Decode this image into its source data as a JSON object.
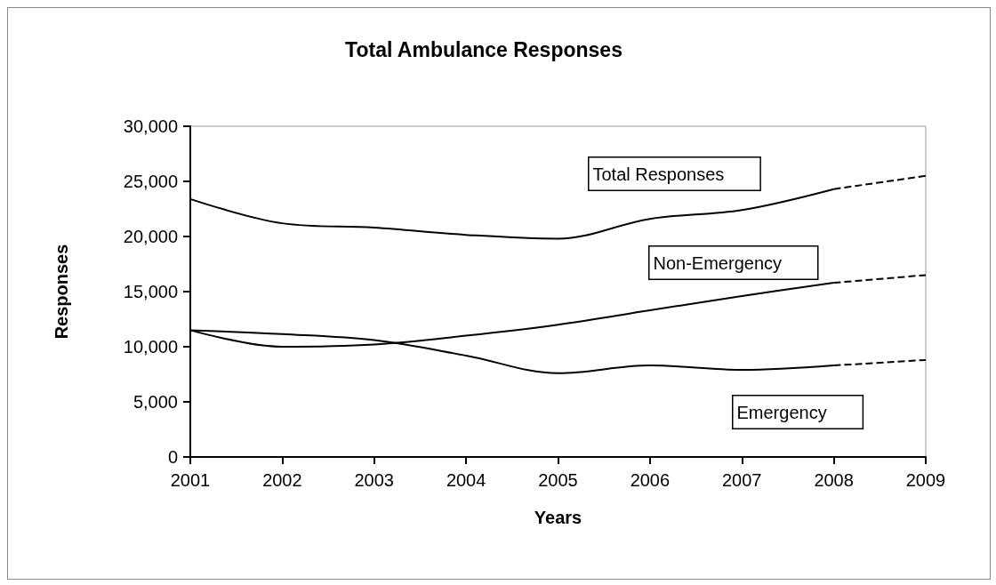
{
  "chart_data": {
    "type": "line",
    "title": "Total Ambulance Responses",
    "xlabel": "Years",
    "ylabel": "Responses",
    "categories": [
      "2001",
      "2002",
      "2003",
      "2004",
      "2005",
      "2006",
      "2007",
      "2008",
      "2009"
    ],
    "series": [
      {
        "name": "Total Responses",
        "color": "#000000",
        "values": [
          23400,
          21200,
          20800,
          20150,
          19800,
          21600,
          22400,
          24300,
          null
        ]
      },
      {
        "color": "#000000",
        "line_style": "dashed",
        "values": [
          null,
          null,
          null,
          null,
          null,
          null,
          null,
          24300,
          25500
        ]
      },
      {
        "name": "Non-Emergency",
        "color": "#000000",
        "values": [
          11500,
          10000,
          10200,
          11000,
          12000,
          13300,
          14600,
          15800,
          null
        ]
      },
      {
        "color": "#000000",
        "line_style": "dashed",
        "values": [
          null,
          null,
          null,
          null,
          null,
          null,
          null,
          15800,
          16500
        ]
      },
      {
        "name": "Emergency",
        "color": "#000000",
        "values": [
          11500,
          11150,
          10600,
          9200,
          7600,
          8300,
          7900,
          8300,
          null
        ]
      },
      {
        "color": "#000000",
        "line_style": "dashed",
        "values": [
          null,
          null,
          null,
          null,
          null,
          null,
          null,
          8300,
          8800
        ]
      }
    ],
    "ylim": [
      0,
      30000
    ],
    "yticks": [
      {
        "value": 0,
        "label": "0"
      },
      {
        "value": 5000,
        "label": "5,000"
      },
      {
        "value": 10000,
        "label": "10,000"
      },
      {
        "value": 15000,
        "label": "15,000"
      },
      {
        "value": 20000,
        "label": "20,000"
      },
      {
        "value": 25000,
        "label": "25,000"
      },
      {
        "value": 30000,
        "label": "30,000"
      }
    ],
    "grid": false,
    "legend": false,
    "marker": "none",
    "line_style": "solid"
  }
}
